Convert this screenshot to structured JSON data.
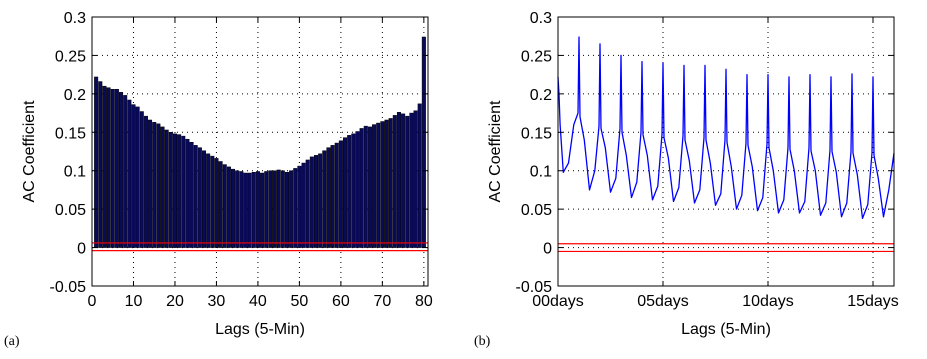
{
  "panel_labels": [
    "(a)",
    "(b)"
  ],
  "colors": {
    "bars": "#0a0a5a",
    "bar_edge": "#000000",
    "line": "#0000ff",
    "confidence": "#ff0000",
    "grid": "#000000"
  },
  "chart_data": [
    {
      "type": "bar",
      "xlabel": "Lags (5-Min)",
      "ylabel": "AC Coefficient",
      "xlim": [
        0,
        81
      ],
      "ylim": [
        -0.05,
        0.3
      ],
      "xticks": [
        0,
        10,
        20,
        30,
        40,
        50,
        60,
        70,
        80
      ],
      "xtick_labels": [
        "0",
        "10",
        "20",
        "30",
        "40",
        "50",
        "60",
        "70",
        "80"
      ],
      "yticks": [
        -0.05,
        0,
        0.05,
        0.1,
        0.15,
        0.2,
        0.25,
        0.3
      ],
      "ytick_labels": [
        "-0.05",
        "0",
        "0.05",
        "0.1",
        "0.15",
        "0.2",
        "0.25",
        "0.3"
      ],
      "grid": "dotted",
      "confidence_bounds": [
        0.006,
        -0.004
      ],
      "x": [
        1,
        2,
        3,
        4,
        5,
        6,
        7,
        8,
        9,
        10,
        11,
        12,
        13,
        14,
        15,
        16,
        17,
        18,
        19,
        20,
        21,
        22,
        23,
        24,
        25,
        26,
        27,
        28,
        29,
        30,
        31,
        32,
        33,
        34,
        35,
        36,
        37,
        38,
        39,
        40,
        41,
        42,
        43,
        44,
        45,
        46,
        47,
        48,
        49,
        50,
        51,
        52,
        53,
        54,
        55,
        56,
        57,
        58,
        59,
        60,
        61,
        62,
        63,
        64,
        65,
        66,
        67,
        68,
        69,
        70,
        71,
        72,
        73,
        74,
        75,
        76,
        77,
        78,
        79,
        80
      ],
      "values": [
        0.222,
        0.216,
        0.21,
        0.208,
        0.206,
        0.206,
        0.202,
        0.198,
        0.192,
        0.186,
        0.183,
        0.177,
        0.171,
        0.166,
        0.163,
        0.161,
        0.157,
        0.153,
        0.15,
        0.148,
        0.147,
        0.145,
        0.141,
        0.137,
        0.133,
        0.13,
        0.126,
        0.122,
        0.119,
        0.116,
        0.112,
        0.108,
        0.105,
        0.102,
        0.1,
        0.099,
        0.097,
        0.097,
        0.098,
        0.099,
        0.097,
        0.099,
        0.1,
        0.1,
        0.101,
        0.1,
        0.098,
        0.1,
        0.103,
        0.106,
        0.11,
        0.114,
        0.118,
        0.12,
        0.122,
        0.126,
        0.13,
        0.133,
        0.136,
        0.139,
        0.143,
        0.146,
        0.148,
        0.151,
        0.155,
        0.158,
        0.157,
        0.16,
        0.162,
        0.164,
        0.166,
        0.168,
        0.172,
        0.176,
        0.174,
        0.171,
        0.175,
        0.178,
        0.187,
        0.274
      ]
    },
    {
      "type": "line",
      "xlabel": "Lags (5-Min)",
      "ylabel": "AC Coefficient",
      "xlim": [
        0,
        16
      ],
      "ylim": [
        -0.05,
        0.3
      ],
      "xticks": [
        0,
        5,
        10,
        15
      ],
      "xtick_labels": [
        "00days",
        "05days",
        "10days",
        "15days"
      ],
      "yticks": [
        -0.05,
        0,
        0.05,
        0.1,
        0.15,
        0.2,
        0.25,
        0.3
      ],
      "ytick_labels": [
        "-0.05",
        "0",
        "0.05",
        "0.1",
        "0.15",
        "0.2",
        "0.25",
        "0.3"
      ],
      "grid": "dotted",
      "confidence_bounds": [
        0.005,
        -0.005
      ],
      "x": [
        0,
        0.05,
        0.1,
        0.25,
        0.5,
        0.75,
        0.95,
        1,
        1.05,
        1.25,
        1.5,
        1.75,
        1.95,
        2,
        2.05,
        2.25,
        2.5,
        2.75,
        2.95,
        3,
        3.05,
        3.25,
        3.5,
        3.75,
        3.95,
        4,
        4.05,
        4.25,
        4.5,
        4.75,
        4.95,
        5,
        5.05,
        5.25,
        5.5,
        5.75,
        5.95,
        6,
        6.05,
        6.25,
        6.5,
        6.75,
        6.95,
        7,
        7.05,
        7.25,
        7.5,
        7.75,
        7.95,
        8,
        8.05,
        8.25,
        8.5,
        8.75,
        8.95,
        9,
        9.05,
        9.25,
        9.5,
        9.75,
        9.95,
        10,
        10.05,
        10.25,
        10.5,
        10.75,
        10.95,
        11,
        11.05,
        11.25,
        11.5,
        11.75,
        11.95,
        12,
        12.05,
        12.25,
        12.5,
        12.75,
        12.95,
        13,
        13.05,
        13.25,
        13.5,
        13.75,
        13.95,
        14,
        14.05,
        14.25,
        14.5,
        14.75,
        14.95,
        15,
        15.05,
        15.25,
        15.5,
        15.75,
        16
      ],
      "values": [
        0.222,
        0.2,
        0.16,
        0.098,
        0.11,
        0.16,
        0.175,
        0.274,
        0.17,
        0.14,
        0.075,
        0.1,
        0.158,
        0.265,
        0.155,
        0.13,
        0.072,
        0.09,
        0.155,
        0.25,
        0.15,
        0.12,
        0.065,
        0.085,
        0.15,
        0.242,
        0.147,
        0.12,
        0.062,
        0.08,
        0.147,
        0.24,
        0.143,
        0.117,
        0.06,
        0.078,
        0.145,
        0.237,
        0.14,
        0.113,
        0.058,
        0.075,
        0.143,
        0.237,
        0.14,
        0.11,
        0.055,
        0.07,
        0.14,
        0.232,
        0.137,
        0.105,
        0.05,
        0.068,
        0.136,
        0.225,
        0.133,
        0.105,
        0.048,
        0.065,
        0.135,
        0.225,
        0.13,
        0.1,
        0.045,
        0.062,
        0.13,
        0.222,
        0.128,
        0.1,
        0.045,
        0.06,
        0.13,
        0.225,
        0.126,
        0.1,
        0.042,
        0.058,
        0.127,
        0.222,
        0.125,
        0.098,
        0.04,
        0.058,
        0.125,
        0.226,
        0.123,
        0.095,
        0.038,
        0.056,
        0.123,
        0.222,
        0.12,
        0.09,
        0.04,
        0.075,
        0.123
      ]
    }
  ]
}
